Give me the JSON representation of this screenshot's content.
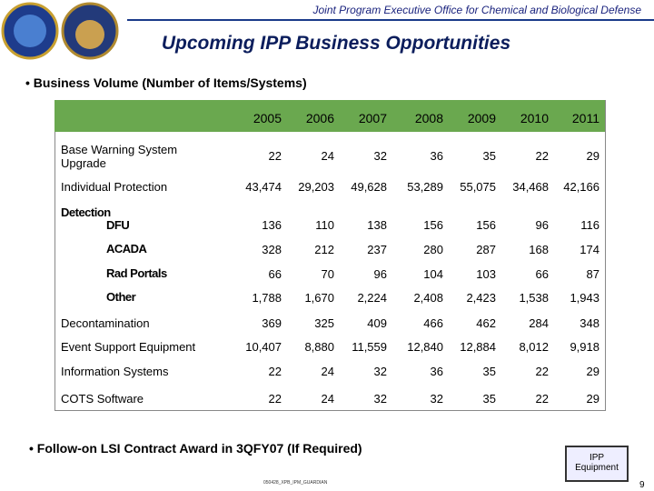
{
  "header": {
    "org": "Joint Program Executive Office for Chemical and Biological Defense",
    "title": "Upcoming IPP Business Opportunities"
  },
  "bullets": [
    "Business Volume (Number of Items/Systems)",
    "Follow-on LSI Contract Award in 3QFY07 (If Required)"
  ],
  "table": {
    "columns": [
      "2005",
      "2006",
      "2007",
      "2008",
      "2009",
      "2010",
      "2011"
    ],
    "rows": [
      {
        "label": "Base Warning System Upgrade",
        "values": [
          "22",
          "24",
          "32",
          "36",
          "35",
          "22",
          "29"
        ]
      },
      {
        "label": "Individual Protection",
        "values": [
          "43,474",
          "29,203",
          "49,628",
          "53,289",
          "55,075",
          "34,468",
          "42,166"
        ]
      },
      {
        "label": "Detection"
      },
      {
        "label": "DFU",
        "values": [
          "136",
          "110",
          "138",
          "156",
          "156",
          "96",
          "116"
        ]
      },
      {
        "label": "ACADA",
        "values": [
          "328",
          "212",
          "237",
          "280",
          "287",
          "168",
          "174"
        ]
      },
      {
        "label": "Rad Portals",
        "values": [
          "66",
          "70",
          "96",
          "104",
          "103",
          "66",
          "87"
        ]
      },
      {
        "label": "Other",
        "values": [
          "1,788",
          "1,670",
          "2,224",
          "2,408",
          "2,423",
          "1,538",
          "1,943"
        ]
      },
      {
        "label": "Decontamination",
        "values": [
          "369",
          "325",
          "409",
          "466",
          "462",
          "284",
          "348"
        ]
      },
      {
        "label": "Event Support Equipment",
        "values": [
          "10,407",
          "8,880",
          "11,559",
          "12,840",
          "12,884",
          "8,012",
          "9,918"
        ]
      },
      {
        "label": "Information Systems",
        "values": [
          "22",
          "24",
          "32",
          "36",
          "35",
          "22",
          "29"
        ]
      },
      {
        "label": "COTS Software",
        "values": [
          "22",
          "24",
          "32",
          "32",
          "35",
          "22",
          "29"
        ]
      }
    ]
  },
  "badge": "IPP Equipment",
  "footer": {
    "file": "050428_XPB_IPM_GUARDIAN",
    "page": "9"
  }
}
